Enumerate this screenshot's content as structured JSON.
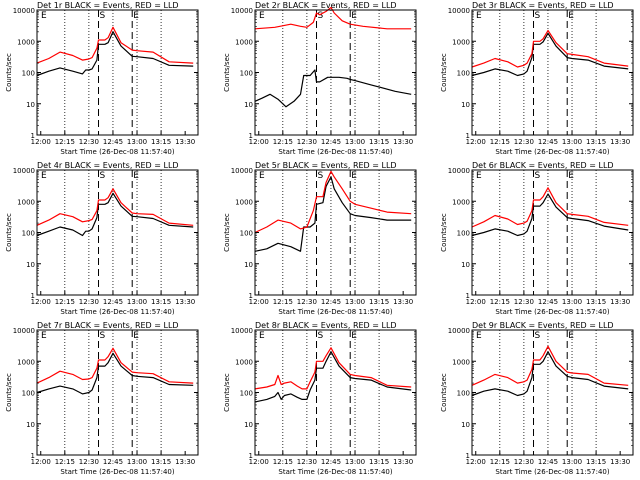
{
  "x_ticks": [
    "12:00",
    "12:15",
    "12:30",
    "12:45",
    "13:00",
    "13:15",
    "13:30"
  ],
  "y_ticks": [
    "1",
    "10",
    "100",
    "1000",
    "10000"
  ],
  "ylabel": "Counts/sec",
  "xlabel": "Start Time (26-Dec-08 11:57:40)",
  "markers": [
    "E",
    "S",
    "E"
  ],
  "colors": {
    "events": "#000000",
    "lld": "#ff0000"
  },
  "chart_data": [
    {
      "type": "line",
      "title": "Det 1r BLACK = Events, RED = LLD",
      "xlim": [
        "11:57:40",
        "13:38:00"
      ],
      "ylim": [
        1,
        10000
      ],
      "yscale": "log",
      "grid": "dotted verticals every 15 min",
      "vlines_dashed": [
        "12:36",
        "12:57"
      ],
      "series": [
        {
          "name": "Events",
          "color": "#000000",
          "x": [
            "11:57:40",
            "12:05",
            "12:12",
            "12:20",
            "12:26",
            "12:28",
            "12:30",
            "12:32",
            "12:35",
            "12:36",
            "12:40",
            "12:42",
            "12:45",
            "12:50",
            "12:57",
            "13:00",
            "13:10",
            "13:20",
            "13:35"
          ],
          "y": [
            80,
            110,
            140,
            110,
            90,
            120,
            120,
            130,
            250,
            800,
            800,
            900,
            2000,
            700,
            330,
            320,
            280,
            170,
            160
          ]
        },
        {
          "name": "LLD",
          "color": "#ff0000",
          "x": [
            "11:57:40",
            "12:05",
            "12:12",
            "12:20",
            "12:26",
            "12:30",
            "12:32",
            "12:35",
            "12:36",
            "12:40",
            "12:42",
            "12:45",
            "12:50",
            "12:57",
            "13:00",
            "13:10",
            "13:20",
            "13:35"
          ],
          "y": [
            200,
            280,
            450,
            350,
            250,
            270,
            300,
            600,
            1100,
            1100,
            1300,
            2800,
            900,
            520,
            500,
            450,
            220,
            200
          ]
        }
      ]
    },
    {
      "type": "line",
      "title": "Det 2r BLACK = Events, RED = LLD",
      "xlim": [
        "11:57:40",
        "13:38:00"
      ],
      "ylim": [
        1,
        10000
      ],
      "yscale": "log",
      "grid": "dotted verticals every 15 min",
      "vlines_dashed": [
        "12:36",
        "12:57"
      ],
      "series": [
        {
          "name": "Events",
          "color": "#000000",
          "x": [
            "11:57:40",
            "12:02",
            "12:07",
            "12:12",
            "12:17",
            "12:22",
            "12:26",
            "12:28",
            "12:32",
            "12:35",
            "12:36",
            "12:38",
            "12:43",
            "12:50",
            "12:55",
            "12:57",
            "13:00",
            "13:10",
            "13:25",
            "13:35"
          ],
          "y": [
            12,
            15,
            20,
            14,
            8,
            12,
            20,
            80,
            80,
            120,
            50,
            50,
            70,
            70,
            65,
            60,
            55,
            40,
            25,
            20
          ]
        },
        {
          "name": "LLD",
          "color": "#ff0000",
          "x": [
            "11:57:40",
            "12:10",
            "12:20",
            "12:26",
            "12:30",
            "12:34",
            "12:36",
            "12:38",
            "12:42",
            "12:45",
            "12:47",
            "12:52",
            "12:57",
            "13:05",
            "13:20",
            "13:35"
          ],
          "y": [
            2500,
            2800,
            3500,
            3000,
            2800,
            4000,
            8000,
            7000,
            9000,
            12000,
            8000,
            4500,
            3500,
            3000,
            2500,
            2500
          ]
        }
      ]
    },
    {
      "type": "line",
      "title": "Det 3r BLACK = Events, RED = LLD",
      "xlim": [
        "11:57:40",
        "13:38:00"
      ],
      "ylim": [
        1,
        10000
      ],
      "yscale": "log",
      "grid": "dotted verticals every 15 min",
      "vlines_dashed": [
        "12:36",
        "12:57"
      ],
      "series": [
        {
          "name": "Events",
          "color": "#000000",
          "x": [
            "11:57:40",
            "12:05",
            "12:12",
            "12:20",
            "12:26",
            "12:30",
            "12:32",
            "12:35",
            "12:36",
            "12:40",
            "12:42",
            "12:45",
            "12:50",
            "12:57",
            "13:00",
            "13:10",
            "13:20",
            "13:35"
          ],
          "y": [
            80,
            100,
            130,
            110,
            80,
            90,
            110,
            300,
            800,
            800,
            950,
            1800,
            700,
            300,
            280,
            250,
            160,
            130
          ]
        },
        {
          "name": "LLD",
          "color": "#ff0000",
          "x": [
            "11:57:40",
            "12:05",
            "12:12",
            "12:20",
            "12:26",
            "12:30",
            "12:32",
            "12:35",
            "12:36",
            "12:40",
            "12:42",
            "12:45",
            "12:50",
            "12:57",
            "13:00",
            "13:10",
            "13:20",
            "13:35"
          ],
          "y": [
            150,
            200,
            280,
            220,
            150,
            170,
            200,
            400,
            1000,
            1000,
            1200,
            2200,
            900,
            400,
            380,
            320,
            200,
            160
          ]
        }
      ]
    },
    {
      "type": "line",
      "title": "Det 4r BLACK = Events, RED = LLD",
      "xlim": [
        "11:57:40",
        "13:38:00"
      ],
      "ylim": [
        1,
        10000
      ],
      "yscale": "log",
      "grid": "dotted verticals every 15 min",
      "vlines_dashed": [
        "12:36",
        "12:57"
      ],
      "series": [
        {
          "name": "Events",
          "color": "#000000",
          "x": [
            "11:57:40",
            "12:05",
            "12:12",
            "12:20",
            "12:26",
            "12:28",
            "12:30",
            "12:32",
            "12:35",
            "12:36",
            "12:40",
            "12:42",
            "12:45",
            "12:50",
            "12:57",
            "13:00",
            "13:10",
            "13:20",
            "13:35"
          ],
          "y": [
            80,
            110,
            150,
            120,
            80,
            110,
            110,
            130,
            300,
            800,
            800,
            900,
            1800,
            700,
            330,
            320,
            280,
            170,
            150
          ]
        },
        {
          "name": "LLD",
          "color": "#ff0000",
          "x": [
            "11:57:40",
            "12:05",
            "12:12",
            "12:20",
            "12:26",
            "12:30",
            "12:32",
            "12:35",
            "12:36",
            "12:40",
            "12:42",
            "12:45",
            "12:50",
            "12:57",
            "13:00",
            "13:10",
            "13:20",
            "13:35"
          ],
          "y": [
            170,
            250,
            400,
            320,
            220,
            240,
            260,
            500,
            1100,
            1100,
            1300,
            2500,
            900,
            420,
            400,
            380,
            200,
            170
          ]
        }
      ]
    },
    {
      "type": "line",
      "title": "Det 5r BLACK = Events, RED = LLD",
      "xlim": [
        "11:57:40",
        "13:38:00"
      ],
      "ylim": [
        1,
        10000
      ],
      "yscale": "log",
      "grid": "dotted verticals every 15 min",
      "vlines_dashed": [
        "12:36",
        "12:57"
      ],
      "series": [
        {
          "name": "Events",
          "color": "#000000",
          "x": [
            "11:57:40",
            "12:05",
            "12:12",
            "12:20",
            "12:26",
            "12:28",
            "12:32",
            "12:35",
            "12:36",
            "12:40",
            "12:42",
            "12:45",
            "12:47",
            "12:52",
            "12:57",
            "13:00",
            "13:10",
            "13:20",
            "13:35"
          ],
          "y": [
            25,
            30,
            45,
            35,
            25,
            150,
            150,
            200,
            800,
            900,
            3000,
            6000,
            2500,
            900,
            400,
            350,
            300,
            250,
            250
          ]
        },
        {
          "name": "LLD",
          "color": "#ff0000",
          "x": [
            "11:57:40",
            "12:05",
            "12:12",
            "12:20",
            "12:26",
            "12:30",
            "12:34",
            "12:36",
            "12:40",
            "12:42",
            "12:45",
            "12:47",
            "12:52",
            "12:57",
            "13:00",
            "13:10",
            "13:20",
            "13:35"
          ],
          "y": [
            100,
            150,
            250,
            200,
            130,
            150,
            500,
            1400,
            1400,
            4000,
            9000,
            6000,
            2500,
            1000,
            800,
            600,
            450,
            400
          ]
        }
      ]
    },
    {
      "type": "line",
      "title": "Det 6r BLACK = Events, RED = LLD",
      "xlim": [
        "11:57:40",
        "13:38:00"
      ],
      "ylim": [
        1,
        10000
      ],
      "yscale": "log",
      "grid": "dotted verticals every 15 min",
      "vlines_dashed": [
        "12:36",
        "12:57"
      ],
      "series": [
        {
          "name": "Events",
          "color": "#000000",
          "x": [
            "11:57:40",
            "12:05",
            "12:12",
            "12:20",
            "12:26",
            "12:30",
            "12:32",
            "12:35",
            "12:36",
            "12:40",
            "12:42",
            "12:45",
            "12:50",
            "12:57",
            "13:00",
            "13:10",
            "13:20",
            "13:35"
          ],
          "y": [
            80,
            100,
            130,
            110,
            80,
            90,
            110,
            280,
            700,
            700,
            900,
            1700,
            650,
            300,
            280,
            240,
            160,
            120
          ]
        },
        {
          "name": "LLD",
          "color": "#ff0000",
          "x": [
            "11:57:40",
            "12:05",
            "12:12",
            "12:20",
            "12:26",
            "12:30",
            "12:32",
            "12:35",
            "12:36",
            "12:40",
            "12:42",
            "12:45",
            "12:50",
            "12:57",
            "13:00",
            "13:10",
            "13:20",
            "13:35"
          ],
          "y": [
            150,
            220,
            350,
            270,
            180,
            200,
            230,
            500,
            1100,
            1100,
            1400,
            2700,
            900,
            400,
            380,
            330,
            210,
            170
          ]
        }
      ]
    },
    {
      "type": "line",
      "title": "Det 7r BLACK = Events, RED = LLD",
      "xlim": [
        "11:57:40",
        "13:38:00"
      ],
      "ylim": [
        1,
        10000
      ],
      "yscale": "log",
      "grid": "dotted verticals every 15 min",
      "vlines_dashed": [
        "12:36",
        "12:57"
      ],
      "series": [
        {
          "name": "Events",
          "color": "#000000",
          "x": [
            "11:57:40",
            "12:05",
            "12:12",
            "12:20",
            "12:26",
            "12:30",
            "12:32",
            "12:35",
            "12:36",
            "12:40",
            "12:42",
            "12:45",
            "12:50",
            "12:57",
            "13:00",
            "13:10",
            "13:20",
            "13:35"
          ],
          "y": [
            100,
            130,
            160,
            130,
            90,
            100,
            120,
            300,
            700,
            700,
            900,
            1800,
            700,
            350,
            330,
            300,
            180,
            170
          ]
        },
        {
          "name": "LLD",
          "color": "#ff0000",
          "x": [
            "11:57:40",
            "12:05",
            "12:12",
            "12:20",
            "12:26",
            "12:30",
            "12:32",
            "12:35",
            "12:36",
            "12:40",
            "12:42",
            "12:45",
            "12:50",
            "12:57",
            "13:00",
            "13:10",
            "13:20",
            "13:35"
          ],
          "y": [
            200,
            300,
            480,
            380,
            260,
            270,
            300,
            600,
            1100,
            1100,
            1400,
            2600,
            900,
            450,
            430,
            400,
            220,
            200
          ]
        }
      ]
    },
    {
      "type": "line",
      "title": "Det 8r BLACK = Events, RED = LLD",
      "xlim": [
        "11:57:40",
        "13:38:00"
      ],
      "ylim": [
        1,
        10000
      ],
      "yscale": "log",
      "grid": "dotted verticals every 15 min",
      "vlines_dashed": [
        "12:36",
        "12:57"
      ],
      "series": [
        {
          "name": "Events",
          "color": "#000000",
          "x": [
            "11:57:40",
            "12:05",
            "12:10",
            "12:12",
            "12:14",
            "12:16",
            "12:20",
            "12:24",
            "12:27",
            "12:30",
            "12:32",
            "12:35",
            "12:36",
            "12:40",
            "12:42",
            "12:45",
            "12:50",
            "12:57",
            "13:00",
            "13:10",
            "13:20",
            "13:35"
          ],
          "y": [
            50,
            60,
            75,
            100,
            60,
            80,
            90,
            70,
            60,
            60,
            120,
            250,
            600,
            600,
            1000,
            2000,
            700,
            300,
            280,
            250,
            150,
            120
          ]
        },
        {
          "name": "LLD",
          "color": "#ff0000",
          "x": [
            "11:57:40",
            "12:05",
            "12:10",
            "12:12",
            "12:14",
            "12:16",
            "12:20",
            "12:24",
            "12:27",
            "12:30",
            "12:32",
            "12:35",
            "12:36",
            "12:40",
            "12:42",
            "12:45",
            "12:50",
            "12:57",
            "13:00",
            "13:10",
            "13:20",
            "13:35"
          ],
          "y": [
            130,
            150,
            180,
            350,
            180,
            200,
            220,
            160,
            130,
            130,
            220,
            450,
            1000,
            1000,
            1500,
            2700,
            900,
            380,
            350,
            300,
            170,
            150
          ]
        }
      ]
    },
    {
      "type": "line",
      "title": "Det 9r BLACK = Events, RED = LLD",
      "xlim": [
        "11:57:40",
        "13:38:00"
      ],
      "ylim": [
        1,
        10000
      ],
      "yscale": "log",
      "grid": "dotted verticals every 15 min",
      "vlines_dashed": [
        "12:36",
        "12:57"
      ],
      "series": [
        {
          "name": "Events",
          "color": "#000000",
          "x": [
            "11:57:40",
            "12:05",
            "12:12",
            "12:20",
            "12:26",
            "12:30",
            "12:32",
            "12:35",
            "12:36",
            "12:40",
            "12:42",
            "12:45",
            "12:50",
            "12:57",
            "13:00",
            "13:10",
            "13:20",
            "13:35"
          ],
          "y": [
            80,
            110,
            130,
            110,
            80,
            90,
            110,
            300,
            800,
            800,
            1000,
            2000,
            700,
            330,
            300,
            260,
            160,
            130
          ]
        },
        {
          "name": "LLD",
          "color": "#ff0000",
          "x": [
            "11:57:40",
            "12:05",
            "12:12",
            "12:20",
            "12:26",
            "12:30",
            "12:32",
            "12:35",
            "12:36",
            "12:40",
            "12:42",
            "12:45",
            "12:50",
            "12:57",
            "13:00",
            "13:10",
            "13:20",
            "13:35"
          ],
          "y": [
            170,
            250,
            380,
            300,
            200,
            220,
            250,
            550,
            1100,
            1100,
            1500,
            3000,
            1000,
            450,
            420,
            380,
            200,
            170
          ]
        }
      ]
    }
  ]
}
